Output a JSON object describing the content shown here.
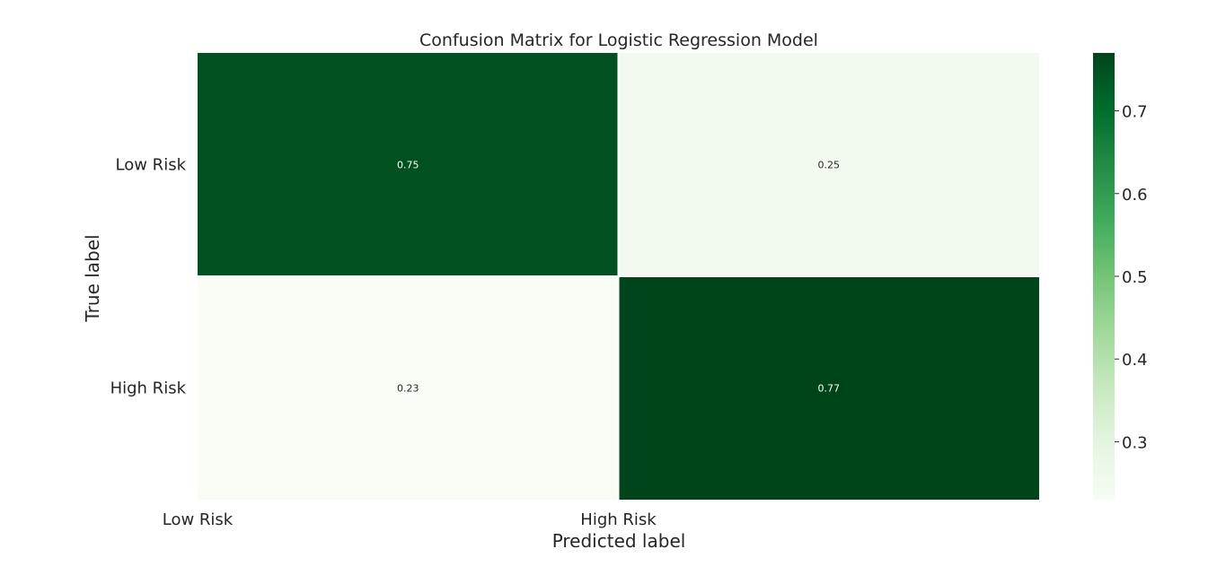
{
  "chart_data": {
    "type": "heatmap",
    "title": "Confusion Matrix for Logistic Regression Model",
    "xlabel": "Predicted label",
    "ylabel": "True label",
    "x_categories": [
      "Low Risk",
      "High Risk"
    ],
    "y_categories": [
      "Low Risk",
      "High Risk"
    ],
    "values": [
      [
        0.75,
        0.25
      ],
      [
        0.23,
        0.77
      ]
    ],
    "cell_labels": [
      [
        "0.75",
        "0.25"
      ],
      [
        "0.23",
        "0.77"
      ]
    ],
    "colormap": "Greens",
    "colorbar": {
      "vmin": 0.23,
      "vmax": 0.77,
      "ticks": [
        0.3,
        0.4,
        0.5,
        0.6,
        0.7
      ],
      "tick_labels": [
        "0.3",
        "0.4",
        "0.5",
        "0.6",
        "0.7"
      ]
    },
    "colors": {
      "low": "#f7fcf5",
      "mid": "#74c476",
      "high": "#00441b"
    }
  }
}
